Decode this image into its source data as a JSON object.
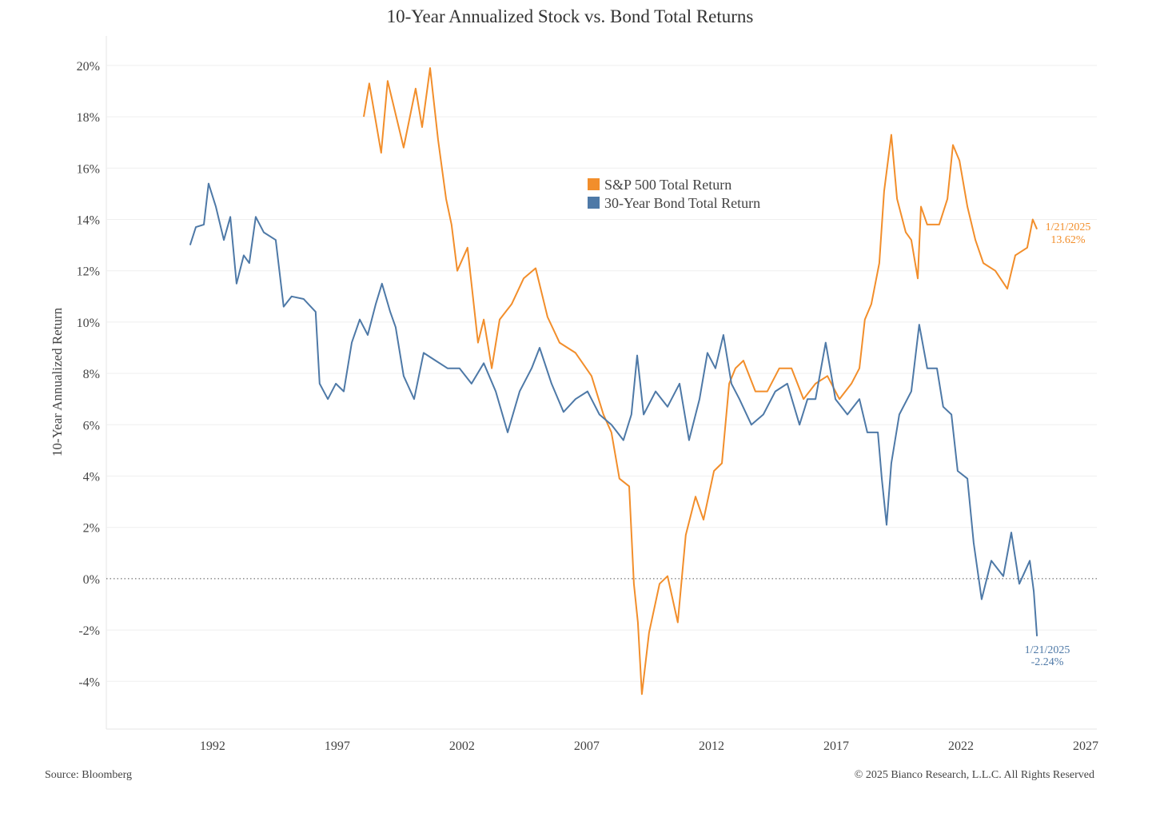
{
  "chart_data": {
    "type": "line",
    "title": "10-Year Annualized Stock vs. Bond Total Returns",
    "xlabel": "",
    "ylabel": "10-Year Annualized Return",
    "xlim": [
      1987.74,
      2027.45
    ],
    "ylim": [
      -5.86,
      21.15
    ],
    "x_ticks": [
      1992,
      1997,
      2002,
      2007,
      2012,
      2017,
      2022,
      2027
    ],
    "y_ticks": [
      -4,
      -2,
      0,
      2,
      4,
      6,
      8,
      10,
      12,
      14,
      16,
      18,
      20
    ],
    "y_tick_labels": [
      "-4%",
      "-2%",
      "0%",
      "2%",
      "4%",
      "6%",
      "8%",
      "10%",
      "12%",
      "14%",
      "16%",
      "18%",
      "20%"
    ],
    "grid": "horizontal",
    "zero_line": "dotted",
    "legend_position": "top-center",
    "colors": {
      "stock": "#F28E2B",
      "bond": "#4E79A7"
    },
    "series": [
      {
        "name": "S&P 500 Total Return",
        "color": "#F28E2B",
        "x": [
          1998.06,
          1998.28,
          1998.76,
          1999.02,
          1999.66,
          2000.14,
          2000.4,
          2000.72,
          2001.04,
          2001.36,
          2001.58,
          2001.81,
          2002.22,
          2002.64,
          2002.87,
          2003.19,
          2003.51,
          2003.99,
          2004.47,
          2004.95,
          2005.43,
          2005.91,
          2006.55,
          2007.19,
          2007.67,
          2007.99,
          2008.31,
          2008.7,
          2008.89,
          2009.05,
          2009.21,
          2009.5,
          2009.92,
          2010.24,
          2010.65,
          2010.97,
          2011.36,
          2011.68,
          2012.1,
          2012.42,
          2012.71,
          2012.96,
          2013.28,
          2013.76,
          2014.24,
          2014.72,
          2015.21,
          2015.69,
          2016.17,
          2016.65,
          2017.13,
          2017.61,
          2017.93,
          2018.15,
          2018.41,
          2018.73,
          2018.92,
          2019.21,
          2019.44,
          2019.79,
          2020.01,
          2020.27,
          2020.4,
          2020.65,
          2021.13,
          2021.46,
          2021.68,
          2021.94,
          2022.26,
          2022.58,
          2022.9,
          2023.38,
          2023.86,
          2024.18,
          2024.66,
          2024.88,
          2025.05
        ],
        "y": [
          18.0,
          19.3,
          16.6,
          19.4,
          16.8,
          19.1,
          17.6,
          19.9,
          17.1,
          14.8,
          13.8,
          12.0,
          12.9,
          9.2,
          10.1,
          8.2,
          10.1,
          10.7,
          11.7,
          12.1,
          10.2,
          9.2,
          8.8,
          7.9,
          6.4,
          5.7,
          3.9,
          3.6,
          -0.2,
          -1.7,
          -4.5,
          -2.1,
          -0.2,
          0.1,
          -1.7,
          1.7,
          3.2,
          2.3,
          4.2,
          4.5,
          7.6,
          8.2,
          8.5,
          7.3,
          7.3,
          8.2,
          8.2,
          7.0,
          7.6,
          7.9,
          7.0,
          7.6,
          8.2,
          10.1,
          10.7,
          12.3,
          15.1,
          17.3,
          14.8,
          13.5,
          13.2,
          11.7,
          14.5,
          13.8,
          13.8,
          14.8,
          16.9,
          16.3,
          14.5,
          13.2,
          12.3,
          12.0,
          11.3,
          12.6,
          12.9,
          14.0,
          13.62
        ],
        "end_annotation": {
          "date": "1/21/2025",
          "value": "13.62%"
        }
      },
      {
        "name": "30-Year Bond Total Return",
        "color": "#4E79A7",
        "x": [
          1991.1,
          1991.33,
          1991.65,
          1991.84,
          1992.13,
          1992.45,
          1992.71,
          1992.96,
          1993.25,
          1993.47,
          1993.73,
          1994.05,
          1994.53,
          1994.85,
          1995.17,
          1995.65,
          1996.13,
          1996.29,
          1996.62,
          1996.94,
          1997.26,
          1997.58,
          1997.9,
          1998.22,
          1998.54,
          1998.79,
          1999.12,
          1999.34,
          1999.66,
          2000.08,
          2000.46,
          2000.94,
          2001.42,
          2001.9,
          2002.38,
          2002.87,
          2003.35,
          2003.83,
          2004.31,
          2004.79,
          2005.11,
          2005.59,
          2006.07,
          2006.55,
          2007.03,
          2007.51,
          2007.99,
          2008.47,
          2008.79,
          2009.02,
          2009.28,
          2009.76,
          2010.24,
          2010.72,
          2011.1,
          2011.52,
          2011.84,
          2012.16,
          2012.48,
          2012.8,
          2013.12,
          2013.6,
          2014.08,
          2014.56,
          2015.04,
          2015.53,
          2015.85,
          2016.17,
          2016.58,
          2016.97,
          2017.45,
          2017.93,
          2018.25,
          2018.67,
          2018.83,
          2019.02,
          2019.21,
          2019.53,
          2020.01,
          2020.33,
          2020.65,
          2021.04,
          2021.29,
          2021.62,
          2021.87,
          2022.26,
          2022.51,
          2022.83,
          2023.22,
          2023.7,
          2024.02,
          2024.34,
          2024.76,
          2024.92,
          2025.05
        ],
        "y": [
          13.0,
          13.7,
          13.8,
          15.4,
          14.5,
          13.2,
          14.1,
          11.5,
          12.6,
          12.3,
          14.1,
          13.5,
          13.2,
          10.6,
          11.0,
          10.9,
          10.4,
          7.6,
          7.0,
          7.6,
          7.3,
          9.2,
          10.1,
          9.5,
          10.7,
          11.5,
          10.4,
          9.8,
          7.9,
          7.0,
          8.8,
          8.5,
          8.2,
          8.2,
          7.6,
          8.4,
          7.3,
          5.7,
          7.3,
          8.2,
          9.0,
          7.6,
          6.5,
          7.0,
          7.3,
          6.4,
          6.0,
          5.4,
          6.4,
          8.7,
          6.4,
          7.3,
          6.7,
          7.6,
          5.4,
          7.0,
          8.8,
          8.2,
          9.5,
          7.6,
          7.0,
          6.0,
          6.4,
          7.3,
          7.6,
          6.0,
          7.0,
          7.0,
          9.2,
          7.0,
          6.4,
          7.0,
          5.7,
          5.7,
          3.9,
          2.1,
          4.5,
          6.4,
          7.3,
          9.9,
          8.2,
          8.2,
          6.7,
          6.4,
          4.2,
          3.9,
          1.4,
          -0.8,
          0.7,
          0.1,
          1.8,
          -0.2,
          0.7,
          -0.5,
          -2.24
        ],
        "end_annotation": {
          "date": "1/21/2025",
          "value": "-2.24%"
        }
      }
    ]
  },
  "footer": {
    "source": "Source: Bloomberg",
    "copyright": "© 2025 Bianco Research, L.L.C. All Rights Reserved"
  }
}
